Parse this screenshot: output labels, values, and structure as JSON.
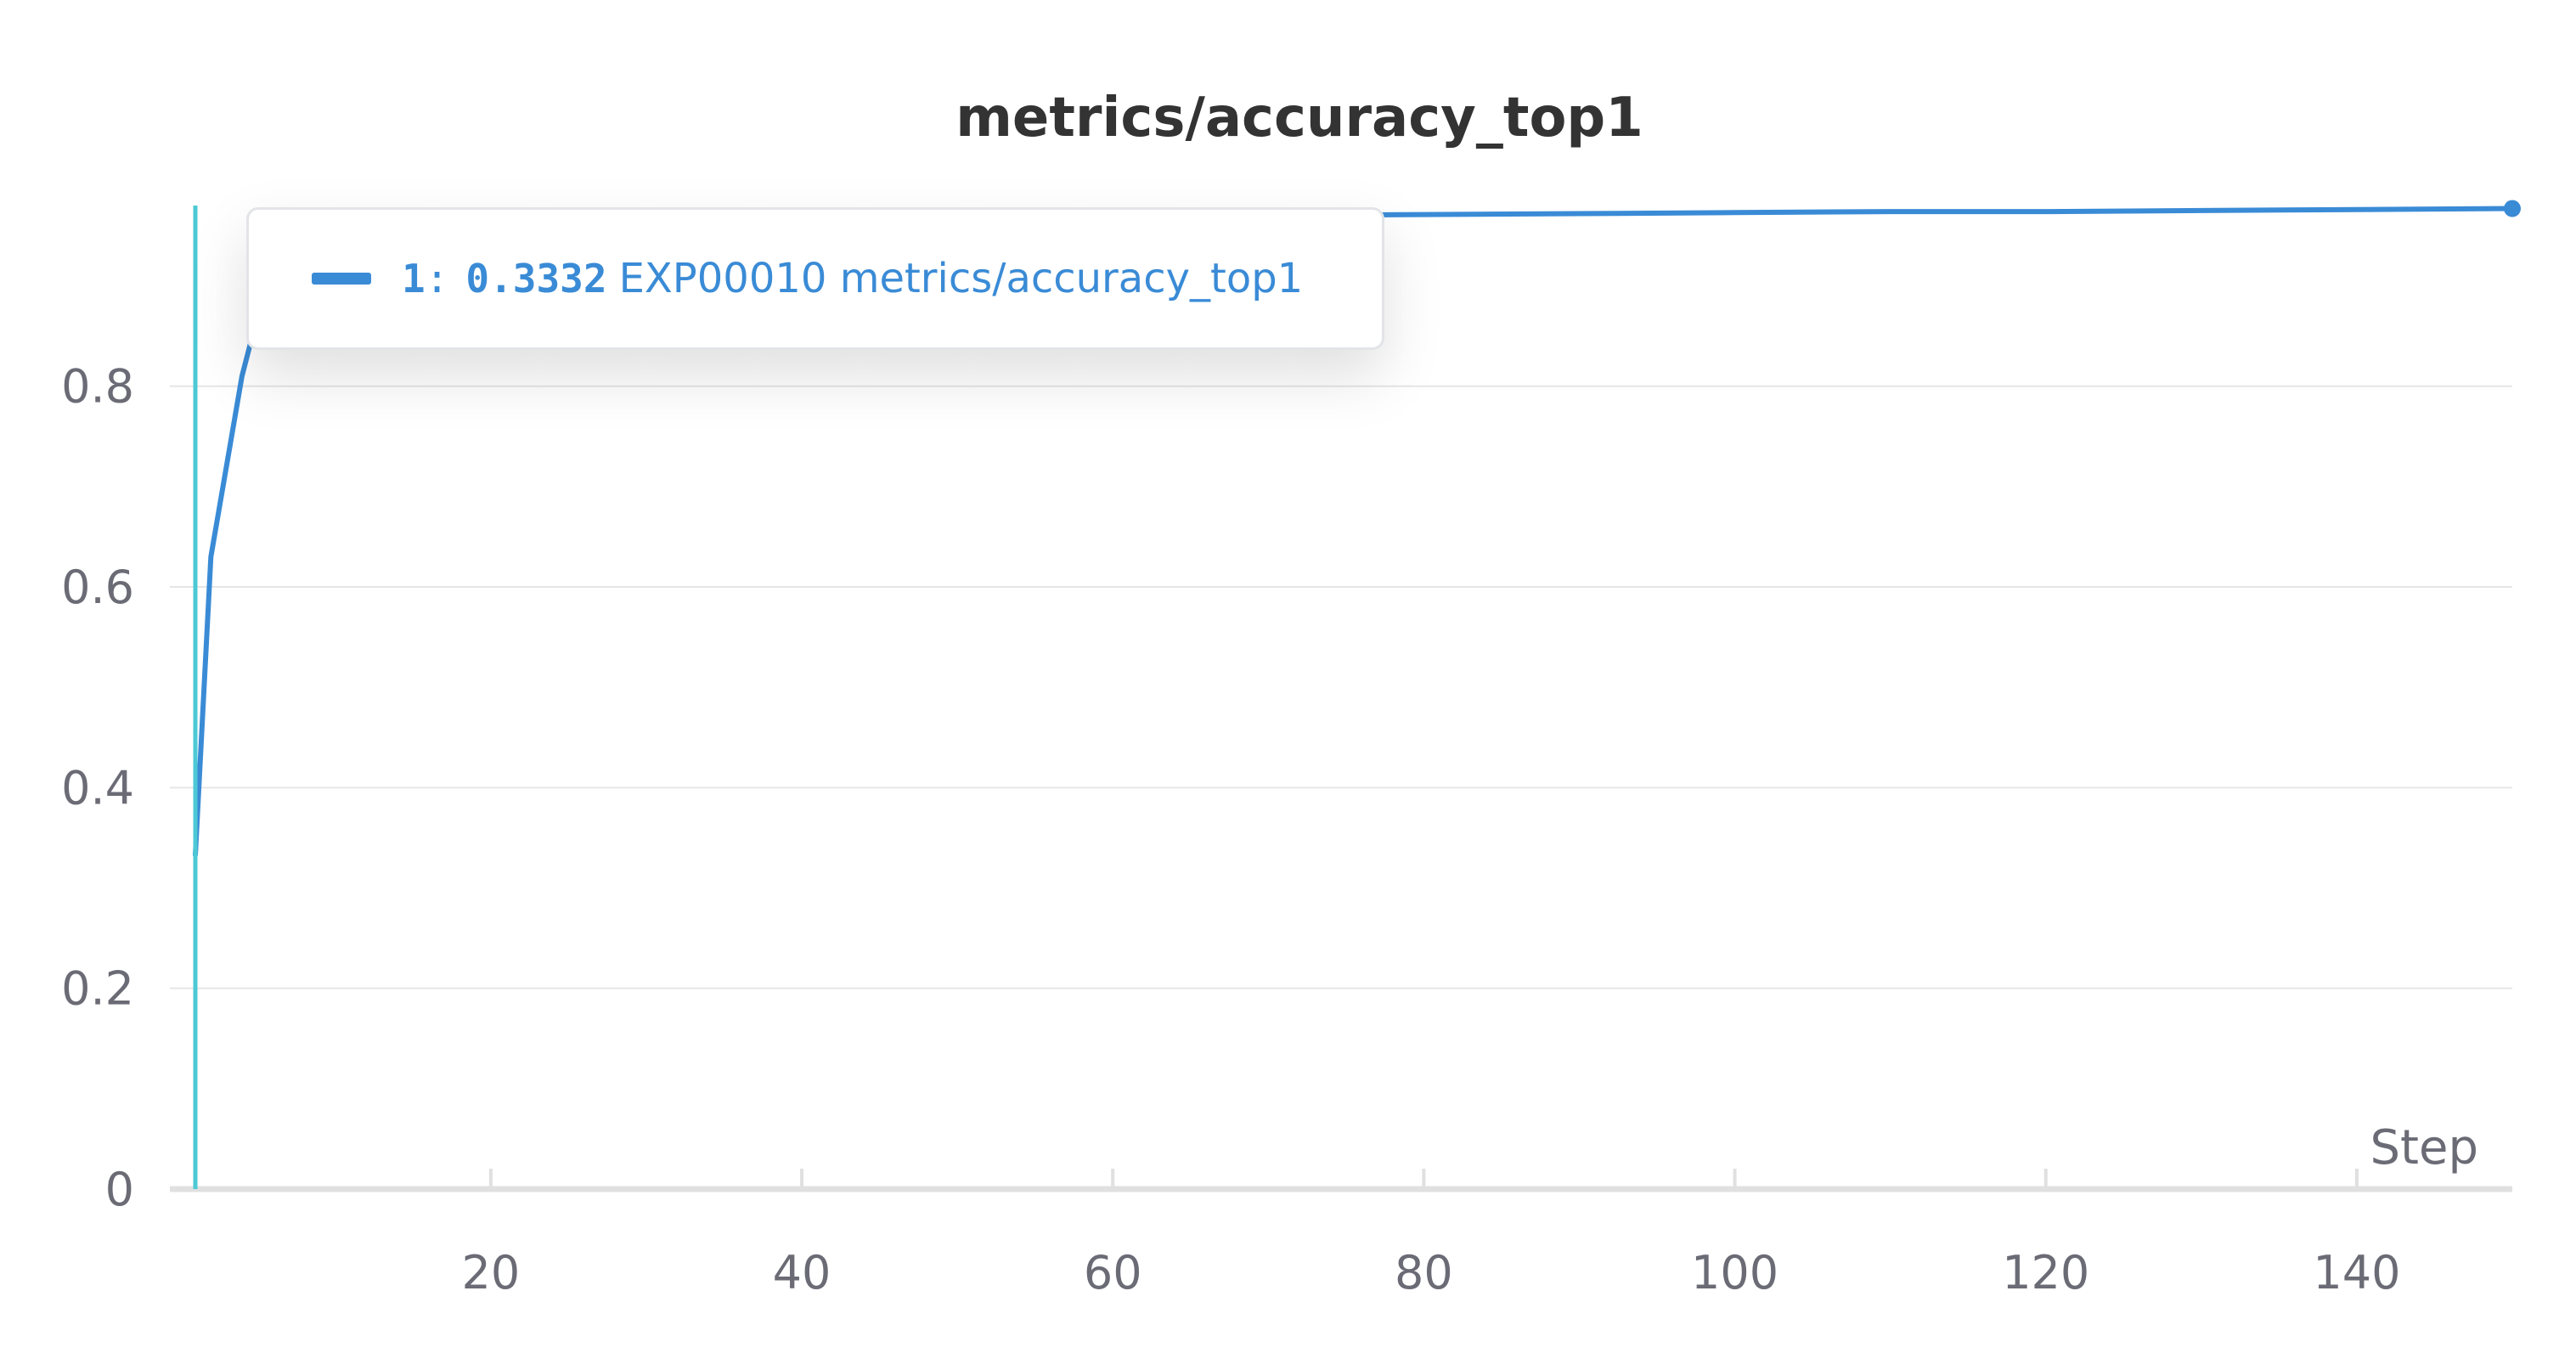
{
  "colors": {
    "series": "#3a8bd6",
    "hover_line": "#4cc9d4",
    "text": "#333333",
    "tick": "#6b6b76"
  },
  "chart_data": {
    "type": "line",
    "title": "metrics/accuracy_top1",
    "xlabel": "Step",
    "ylabel": "",
    "xlim": [
      1,
      150
    ],
    "ylim": [
      0,
      0.98
    ],
    "x_ticks": [
      20,
      40,
      60,
      80,
      100,
      120,
      140
    ],
    "y_ticks": [
      0,
      0.2,
      0.4,
      0.6,
      0.8
    ],
    "grid": true,
    "legend": "none",
    "series": [
      {
        "name": "EXP00010 metrics/accuracy_top1",
        "x": [
          1,
          2,
          3,
          4,
          5,
          6,
          8,
          10,
          15,
          20,
          30,
          40,
          50,
          60,
          70,
          80,
          90,
          100,
          110,
          120,
          130,
          140,
          150
        ],
        "y": [
          0.333,
          0.63,
          0.72,
          0.81,
          0.87,
          0.9,
          0.93,
          0.945,
          0.955,
          0.96,
          0.963,
          0.966,
          0.968,
          0.969,
          0.97,
          0.971,
          0.972,
          0.973,
          0.974,
          0.974,
          0.975,
          0.976,
          0.977
        ]
      }
    ],
    "hover": {
      "x": 1,
      "run_index": "1",
      "separator": ":",
      "value": "0.3332",
      "series_name": "EXP00010 metrics/accuracy_top1"
    }
  }
}
